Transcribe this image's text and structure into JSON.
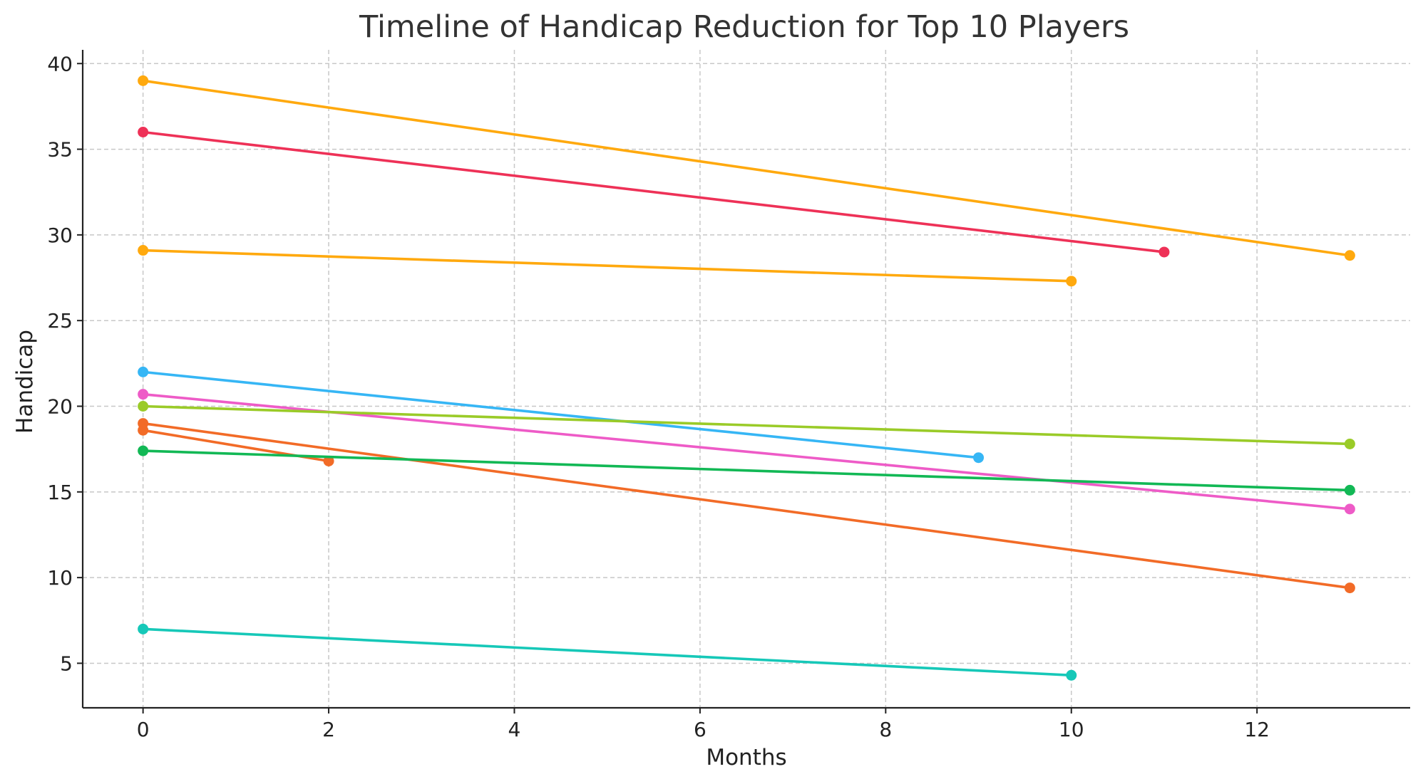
{
  "chart_data": {
    "type": "line",
    "title": "Timeline of Handicap Reduction for Top 10 Players",
    "xlabel": "Months",
    "ylabel": "Handicap",
    "xlim": [
      -0.65,
      13.65
    ],
    "ylim": [
      2.4,
      40.8
    ],
    "xticks": [
      0,
      2,
      4,
      6,
      8,
      10,
      12
    ],
    "yticks": [
      5,
      10,
      15,
      20,
      25,
      30,
      35,
      40
    ],
    "grid": true,
    "grid_style": "dashed",
    "series": [
      {
        "color": "#FFA90E",
        "x": [
          0,
          13
        ],
        "y": [
          39.0,
          28.8
        ]
      },
      {
        "color": "#EE3157",
        "x": [
          0,
          11
        ],
        "y": [
          36.0,
          29.0
        ]
      },
      {
        "color": "#FFA90E",
        "x": [
          0,
          10
        ],
        "y": [
          29.1,
          27.3
        ]
      },
      {
        "color": "#36B6F5",
        "x": [
          0,
          9
        ],
        "y": [
          22.0,
          17.0
        ]
      },
      {
        "color": "#EE5BC7",
        "x": [
          0,
          13
        ],
        "y": [
          20.7,
          14.0
        ]
      },
      {
        "color": "#9ACB28",
        "x": [
          0,
          13
        ],
        "y": [
          20.0,
          17.8
        ]
      },
      {
        "color": "#F26B27",
        "x": [
          0,
          13
        ],
        "y": [
          19.0,
          9.4
        ]
      },
      {
        "color": "#F26B27",
        "x": [
          0,
          2
        ],
        "y": [
          18.6,
          16.8
        ]
      },
      {
        "color": "#12B855",
        "x": [
          0,
          13
        ],
        "y": [
          17.4,
          15.1
        ]
      },
      {
        "color": "#16C8B8",
        "x": [
          0,
          10
        ],
        "y": [
          7.0,
          4.3
        ]
      }
    ]
  }
}
